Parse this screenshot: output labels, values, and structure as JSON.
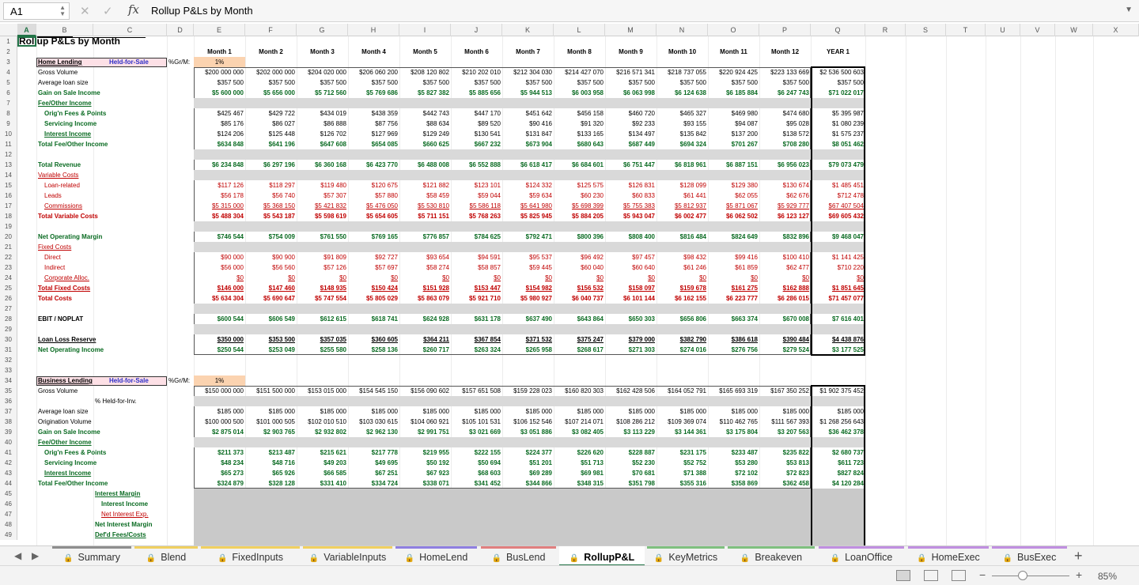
{
  "formula_bar": {
    "cell_ref": "A1",
    "fx": "fx",
    "content": "Rollup P&Ls by Month"
  },
  "columns": [
    "A",
    "B",
    "C",
    "D",
    "E",
    "F",
    "G",
    "H",
    "I",
    "J",
    "K",
    "L",
    "M",
    "N",
    "O",
    "P",
    "Q",
    "R",
    "S",
    "T",
    "U",
    "V",
    "W",
    "X"
  ],
  "rows": [
    "1",
    "2",
    "3",
    "4",
    "5",
    "6",
    "7",
    "8",
    "9",
    "10",
    "11",
    "12",
    "13",
    "14",
    "15",
    "16",
    "17",
    "18",
    "19",
    "20",
    "21",
    "22",
    "23",
    "24",
    "25",
    "26",
    "27",
    "28",
    "29",
    "30",
    "31",
    "32",
    "33",
    "34",
    "35",
    "36",
    "37",
    "38",
    "39",
    "40",
    "41",
    "42",
    "43",
    "44",
    "45",
    "46",
    "47",
    "48",
    "49"
  ],
  "sheet": {
    "title": "Rollup P&Ls by Month",
    "month_headers": [
      "Month 1",
      "Month 2",
      "Month 3",
      "Month 4",
      "Month 5",
      "Month 6",
      "Month 7",
      "Month 8",
      "Month 9",
      "Month 10",
      "Month 11",
      "Month 12",
      "YEAR 1"
    ],
    "gr_label": "%Gr/M:",
    "gr_value": "1%",
    "home": {
      "section": "Home Lending",
      "hfs": "Held-for-Sale",
      "rows": [
        {
          "label": "Gross Volume",
          "values": [
            "$200 000 000",
            "$202 000 000",
            "$204 020 000",
            "$206 060 200",
            "$208 120 802",
            "$210 202 010",
            "$212 304 030",
            "$214 427 070",
            "$216 571 341",
            "$218 737 055",
            "$220 924 425",
            "$223 133 669",
            "$2 536 500 603"
          ]
        },
        {
          "label": "Average loan size",
          "values": [
            "$357 500",
            "$357 500",
            "$357 500",
            "$357 500",
            "$357 500",
            "$357 500",
            "$357 500",
            "$357 500",
            "$357 500",
            "$357 500",
            "$357 500",
            "$357 500",
            "$357 500"
          ]
        },
        {
          "label": "Gain on Sale Income",
          "values": [
            "$5 600 000",
            "$5 656 000",
            "$5 712 560",
            "$5 769 686",
            "$5 827 382",
            "$5 885 656",
            "$5 944 513",
            "$6 003 958",
            "$6 063 998",
            "$6 124 638",
            "$6 185 884",
            "$6 247 743",
            "$71 022 017"
          ]
        },
        {
          "label": "Fee/Other Income",
          "values": []
        },
        {
          "label": "Orig'n Fees & Points",
          "values": [
            "$425 467",
            "$429 722",
            "$434 019",
            "$438 359",
            "$442 743",
            "$447 170",
            "$451 642",
            "$456 158",
            "$460 720",
            "$465 327",
            "$469 980",
            "$474 680",
            "$5 395 987"
          ]
        },
        {
          "label": "Servicing Income",
          "values": [
            "$85 176",
            "$86 027",
            "$86 888",
            "$87 756",
            "$88 634",
            "$89 520",
            "$90 416",
            "$91 320",
            "$92 233",
            "$93 155",
            "$94 087",
            "$95 028",
            "$1 080 239"
          ]
        },
        {
          "label": "Interest Income",
          "values": [
            "$124 206",
            "$125 448",
            "$126 702",
            "$127 969",
            "$129 249",
            "$130 541",
            "$131 847",
            "$133 165",
            "$134 497",
            "$135 842",
            "$137 200",
            "$138 572",
            "$1 575 237"
          ]
        },
        {
          "label": "Total Fee/Other Income",
          "values": [
            "$634 848",
            "$641 196",
            "$647 608",
            "$654 085",
            "$660 625",
            "$667 232",
            "$673 904",
            "$680 643",
            "$687 449",
            "$694 324",
            "$701 267",
            "$708 280",
            "$8 051 462"
          ]
        },
        {
          "label": "",
          "values": []
        },
        {
          "label": "Total Revenue",
          "values": [
            "$6 234 848",
            "$6 297 196",
            "$6 360 168",
            "$6 423 770",
            "$6 488 008",
            "$6 552 888",
            "$6 618 417",
            "$6 684 601",
            "$6 751 447",
            "$6 818 961",
            "$6 887 151",
            "$6 956 023",
            "$79 073 479"
          ]
        },
        {
          "label": "Variable Costs",
          "values": []
        },
        {
          "label": "Loan-related",
          "values": [
            "$117 126",
            "$118 297",
            "$119 480",
            "$120 675",
            "$121 882",
            "$123 101",
            "$124 332",
            "$125 575",
            "$126 831",
            "$128 099",
            "$129 380",
            "$130 674",
            "$1 485 451"
          ]
        },
        {
          "label": "Leads",
          "values": [
            "$56 178",
            "$56 740",
            "$57 307",
            "$57 880",
            "$58 459",
            "$59 044",
            "$59 634",
            "$60 230",
            "$60 833",
            "$61 441",
            "$62 055",
            "$62 676",
            "$712 478"
          ]
        },
        {
          "label": "Commissions",
          "values": [
            "$5 315 000",
            "$5 368 150",
            "$5 421 832",
            "$5 476 050",
            "$5 530 810",
            "$5 586 118",
            "$5 641 980",
            "$5 698 399",
            "$5 755 383",
            "$5 812 937",
            "$5 871 067",
            "$5 929 777",
            "$67 407 504"
          ]
        },
        {
          "label": "Total Variable Costs",
          "values": [
            "$5 488 304",
            "$5 543 187",
            "$5 598 619",
            "$5 654 605",
            "$5 711 151",
            "$5 768 263",
            "$5 825 945",
            "$5 884 205",
            "$5 943 047",
            "$6 002 477",
            "$6 062 502",
            "$6 123 127",
            "$69 605 432"
          ]
        },
        {
          "label": "",
          "values": []
        },
        {
          "label": "Net Operating Margin",
          "values": [
            "$746 544",
            "$754 009",
            "$761 550",
            "$769 165",
            "$776 857",
            "$784 625",
            "$792 471",
            "$800 396",
            "$808 400",
            "$816 484",
            "$824 649",
            "$832 896",
            "$9 468 047"
          ]
        },
        {
          "label": "Fixed Costs",
          "values": []
        },
        {
          "label": "Direct",
          "values": [
            "$90 000",
            "$90 900",
            "$91 809",
            "$92 727",
            "$93 654",
            "$94 591",
            "$95 537",
            "$96 492",
            "$97 457",
            "$98 432",
            "$99 416",
            "$100 410",
            "$1 141 425"
          ]
        },
        {
          "label": "Indirect",
          "values": [
            "$56 000",
            "$56 560",
            "$57 126",
            "$57 697",
            "$58 274",
            "$58 857",
            "$59 445",
            "$60 040",
            "$60 640",
            "$61 246",
            "$61 859",
            "$62 477",
            "$710 220"
          ]
        },
        {
          "label": "Corporate Alloc.",
          "values": [
            "$0",
            "$0",
            "$0",
            "$0",
            "$0",
            "$0",
            "$0",
            "$0",
            "$0",
            "$0",
            "$0",
            "$0",
            "$0"
          ]
        },
        {
          "label": "Total Fixed Costs",
          "values": [
            "$146 000",
            "$147 460",
            "$148 935",
            "$150 424",
            "$151 928",
            "$153 447",
            "$154 982",
            "$156 532",
            "$158 097",
            "$159 678",
            "$161 275",
            "$162 888",
            "$1 851 645"
          ]
        },
        {
          "label": "Total Costs",
          "values": [
            "$5 634 304",
            "$5 690 647",
            "$5 747 554",
            "$5 805 029",
            "$5 863 079",
            "$5 921 710",
            "$5 980 927",
            "$6 040 737",
            "$6 101 144",
            "$6 162 155",
            "$6 223 777",
            "$6 286 015",
            "$71 457 077"
          ]
        },
        {
          "label": "",
          "values": []
        },
        {
          "label": "EBIT / NOPLAT",
          "values": [
            "$600 544",
            "$606 549",
            "$612 615",
            "$618 741",
            "$624 928",
            "$631 178",
            "$637 490",
            "$643 864",
            "$650 303",
            "$656 806",
            "$663 374",
            "$670 008",
            "$7 616 401"
          ]
        },
        {
          "label": "",
          "values": []
        },
        {
          "label": "Loan Loss Reserve",
          "values": [
            "$350 000",
            "$353 500",
            "$357 035",
            "$360 605",
            "$364 211",
            "$367 854",
            "$371 532",
            "$375 247",
            "$379 000",
            "$382 790",
            "$386 618",
            "$390 484",
            "$4 438 876"
          ]
        },
        {
          "label": "Net Operating Income",
          "values": [
            "$250 544",
            "$253 049",
            "$255 580",
            "$258 136",
            "$260 717",
            "$263 324",
            "$265 958",
            "$268 617",
            "$271 303",
            "$274 016",
            "$276 756",
            "$279 524",
            "$3 177 525"
          ]
        }
      ]
    },
    "business": {
      "section": "Business Lending",
      "hfs": "Held-for-Sale",
      "rows": [
        {
          "label": "Gross Volume",
          "values": [
            "$150 000 000",
            "$151 500 000",
            "$153 015 000",
            "$154 545 150",
            "$156 090 602",
            "$157 651 508",
            "$159 228 023",
            "$160 820 303",
            "$162 428 506",
            "$164 052 791",
            "$165 693 319",
            "$167 350 252",
            "$1 902 375 452"
          ]
        },
        {
          "label": "% Held-for-Inv.",
          "values": []
        },
        {
          "label": "Average loan size",
          "values": [
            "$185 000",
            "$185 000",
            "$185 000",
            "$185 000",
            "$185 000",
            "$185 000",
            "$185 000",
            "$185 000",
            "$185 000",
            "$185 000",
            "$185 000",
            "$185 000",
            "$185 000"
          ]
        },
        {
          "label": "Origination Volume",
          "values": [
            "$100 000 500",
            "$101 000 505",
            "$102 010 510",
            "$103 030 615",
            "$104 060 921",
            "$105 101 531",
            "$106 152 546",
            "$107 214 071",
            "$108 286 212",
            "$109 369 074",
            "$110 462 765",
            "$111 567 393",
            "$1 268 256 643"
          ]
        },
        {
          "label": "Gain on Sale Income",
          "values": [
            "$2 875 014",
            "$2 903 765",
            "$2 932 802",
            "$2 962 130",
            "$2 991 751",
            "$3 021 669",
            "$3 051 886",
            "$3 082 405",
            "$3 113 229",
            "$3 144 361",
            "$3 175 804",
            "$3 207 563",
            "$36 462 378"
          ]
        },
        {
          "label": "Fee/Other Income",
          "values": []
        },
        {
          "label": "Orig'n Fees & Points",
          "values": [
            "$211 373",
            "$213 487",
            "$215 621",
            "$217 778",
            "$219 955",
            "$222 155",
            "$224 377",
            "$226 620",
            "$228 887",
            "$231 175",
            "$233 487",
            "$235 822",
            "$2 680 737"
          ]
        },
        {
          "label": "Servicing Income",
          "values": [
            "$48 234",
            "$48 716",
            "$49 203",
            "$49 695",
            "$50 192",
            "$50 694",
            "$51 201",
            "$51 713",
            "$52 230",
            "$52 752",
            "$53 280",
            "$53 813",
            "$611 723"
          ]
        },
        {
          "label": "Interest Income",
          "values": [
            "$65 273",
            "$65 926",
            "$66 585",
            "$67 251",
            "$67 923",
            "$68 603",
            "$69 289",
            "$69 981",
            "$70 681",
            "$71 388",
            "$72 102",
            "$72 823",
            "$827 824"
          ]
        },
        {
          "label": "Total Fee/Other Income",
          "values": [
            "$324 879",
            "$328 128",
            "$331 410",
            "$334 724",
            "$338 071",
            "$341 452",
            "$344 866",
            "$348 315",
            "$351 798",
            "$355 316",
            "$358 869",
            "$362 458",
            "$4 120 284"
          ]
        },
        {
          "label": "Interest Margin",
          "values": []
        },
        {
          "label": "Interest Income",
          "values": []
        },
        {
          "label": "Net Interest Exp.",
          "values": []
        },
        {
          "label": "Net Interest Margin",
          "values": []
        },
        {
          "label": "Def'd Fees/Costs",
          "values": []
        }
      ]
    }
  },
  "tabs": [
    "Summary",
    "Blend",
    "FixedInputs",
    "VariableInputs",
    "HomeLend",
    "BusLend",
    "RollupP&L",
    "KeyMetrics",
    "Breakeven",
    "LoanOffice",
    "HomeExec",
    "BusExec"
  ],
  "active_tab": "RollupP&L",
  "tab_colors": [
    "#8e8e8e",
    "#f0d060",
    "#f0d060",
    "#f0d060",
    "#8f7fe0",
    "#e07f7f",
    "#ffffff",
    "#7fc07f",
    "#7fc07f",
    "#c08fe0",
    "#c08fe0",
    "#c08fe0"
  ],
  "status": {
    "zoom": "85%",
    "minus": "−",
    "plus": "+"
  }
}
